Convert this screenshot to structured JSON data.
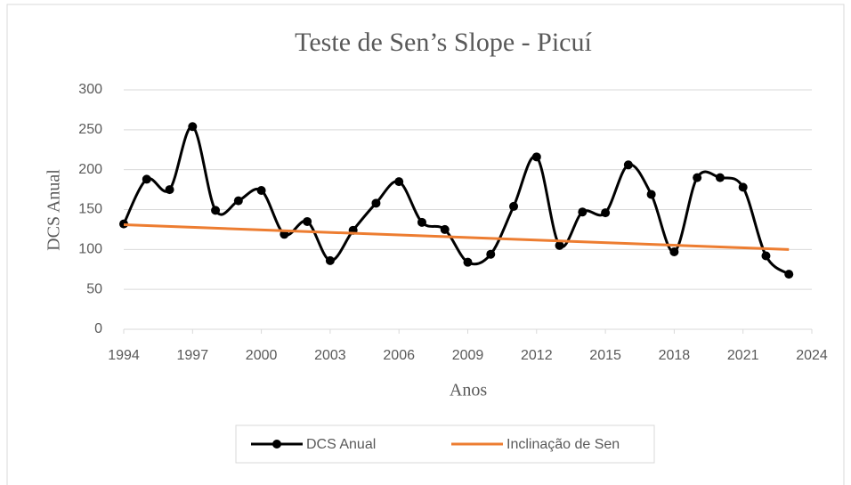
{
  "chart_data": {
    "type": "line",
    "title": "Teste de Sen’s Slope - Picuí",
    "x_label": "Anos",
    "y_label": "DCS Anual",
    "xlim": [
      1994,
      2024
    ],
    "xticks": [
      1994,
      1997,
      2000,
      2003,
      2006,
      2009,
      2012,
      2015,
      2018,
      2021,
      2024
    ],
    "ylim": [
      0,
      300
    ],
    "yticks": [
      0,
      50,
      100,
      150,
      200,
      250,
      300
    ],
    "grid": true,
    "legend": "bottom",
    "series": [
      {
        "name": "DCS Anual",
        "color": "#000000",
        "smooth": true,
        "markers": true,
        "x": [
          1994,
          1995,
          1996,
          1997,
          1998,
          1999,
          2000,
          2001,
          2002,
          2003,
          2004,
          2005,
          2006,
          2007,
          2008,
          2009,
          2010,
          2011,
          2012,
          2013,
          2014,
          2015,
          2016,
          2017,
          2018,
          2019,
          2020,
          2021,
          2022,
          2023
        ],
        "values": [
          132,
          188,
          175,
          254,
          149,
          161,
          174,
          119,
          135,
          86,
          124,
          158,
          185,
          134,
          125,
          84,
          94,
          154,
          216,
          105,
          147,
          146,
          206,
          169,
          97,
          190,
          190,
          178,
          92,
          69
        ]
      },
      {
        "name": "Inclinação de Sen",
        "color": "#ed7d31",
        "smooth": false,
        "markers": false,
        "x": [
          1994,
          2023
        ],
        "values": [
          131,
          100
        ]
      }
    ]
  }
}
